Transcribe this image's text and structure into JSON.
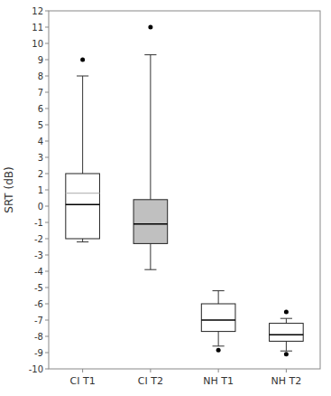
{
  "chart_data": {
    "type": "box",
    "categories": [
      "CI T1",
      "CI T2",
      "NH T1",
      "NH T2"
    ],
    "ylabel": "SRT (dB)",
    "boxes": [
      {
        "q1": -2.0,
        "median": 0.1,
        "mean": 0.8,
        "q3": 2.0,
        "whislo": -2.2,
        "whishi": 8.0,
        "fliers": [
          9.0
        ],
        "color": "white"
      },
      {
        "q1": -2.3,
        "median": -1.1,
        "q3": 0.4,
        "whislo": -3.9,
        "whishi": 9.3,
        "fliers": [
          11.0
        ],
        "color": "#c0c0c0"
      },
      {
        "q1": -7.7,
        "median": -7.0,
        "q3": -6.0,
        "whislo": -8.6,
        "whishi": -5.2,
        "fliers": [
          -8.85
        ],
        "color": "white"
      },
      {
        "q1": -8.3,
        "median": -7.9,
        "q3": -7.2,
        "whislo": -8.9,
        "whishi": -6.9,
        "fliers": [
          -6.5,
          -9.1
        ],
        "color": "white"
      }
    ],
    "ylim": [
      -10,
      12
    ],
    "yticks": [
      -10,
      -9,
      -8,
      -7,
      -6,
      -5,
      -4,
      -3,
      -2,
      -1,
      0,
      1,
      2,
      3,
      4,
      5,
      6,
      7,
      8,
      9,
      10,
      11,
      12
    ],
    "grid": false
  }
}
